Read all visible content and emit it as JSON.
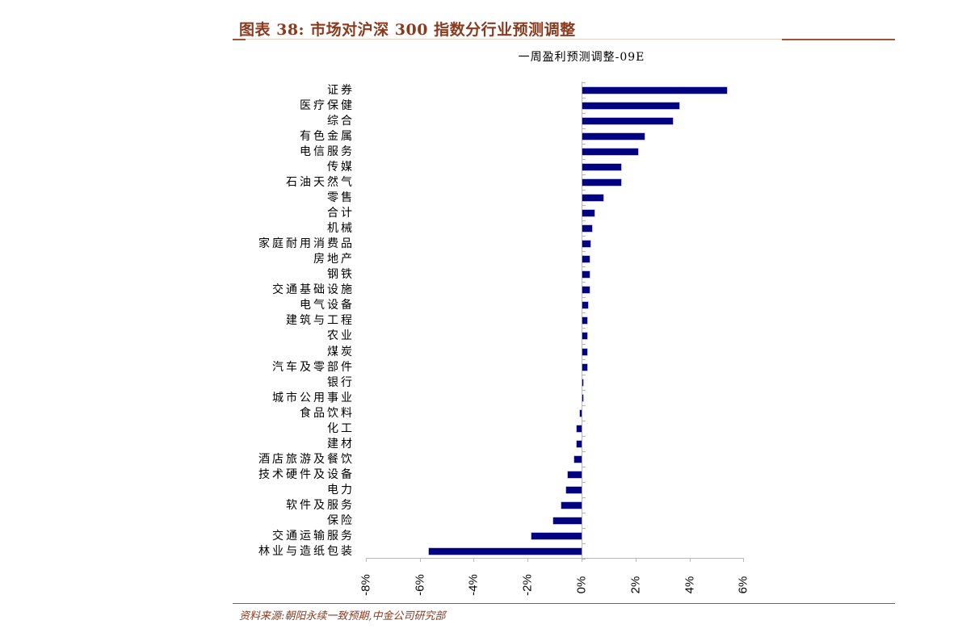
{
  "header": {
    "figure_title": "图表 38:  市场对沪深 300 指数分行业预测调整",
    "accent_color": "#8b3a1e"
  },
  "footer": {
    "source": "资料来源:朝阳永续一致预期,中金公司研究部"
  },
  "chart_data": {
    "type": "bar",
    "orientation": "horizontal",
    "title": "一周盈利预测调整-09E",
    "xlabel": "",
    "ylabel": "",
    "xlim": [
      -8,
      6
    ],
    "x_ticks": [
      "-8%",
      "-6%",
      "-4%",
      "-2%",
      "0%",
      "2%",
      "4%",
      "6%"
    ],
    "grid": false,
    "legend": null,
    "bar_color": "#000080",
    "unit": "%",
    "categories": [
      "证券",
      "医疗保健",
      "综合",
      "有色金属",
      "电信服务",
      "传媒",
      "石油天然气",
      "零售",
      "合计",
      "机械",
      "家庭耐用消费品",
      "房地产",
      "钢铁",
      "交通基础设施",
      "电气设备",
      "建筑与工程",
      "农业",
      "煤炭",
      "汽车及零部件",
      "银行",
      "城市公用事业",
      "食品饮料",
      "化工",
      "建材",
      "酒店旅游及餐饮",
      "技术硬件及设备",
      "电力",
      "软件及服务",
      "保险",
      "交通运输服务",
      "林业与造纸包装"
    ],
    "values": [
      5.35,
      3.6,
      3.35,
      2.3,
      2.08,
      1.45,
      1.45,
      0.78,
      0.44,
      0.35,
      0.3,
      0.26,
      0.26,
      0.26,
      0.21,
      0.17,
      0.17,
      0.17,
      0.17,
      0.04,
      0.04,
      -0.05,
      -0.17,
      -0.17,
      -0.26,
      -0.52,
      -0.57,
      -0.74,
      -1.05,
      -1.87,
      -5.65
    ]
  }
}
